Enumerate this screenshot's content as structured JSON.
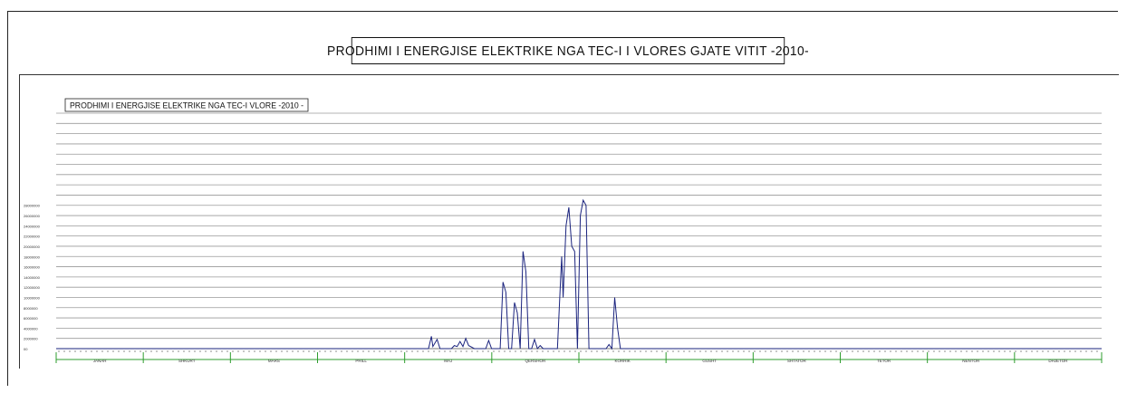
{
  "header": {
    "title": "PRODHIMI  I  ENERGJISE  ELEKTRIKE  NGA  TEC-I  I  VLORES  GJATE  VITIT -2010-"
  },
  "chart_data": {
    "type": "line",
    "title": "PRODHIMI I ENERGJISE ELEKTRIKE NGA TEC-I VLORE -2010 -",
    "xlabel": "",
    "ylabel": "",
    "ylim": [
      0,
      23
    ],
    "grid": true,
    "legend": "none",
    "colors": {
      "line": "#1a237e",
      "month_axis": "#2e9d2e",
      "grid": "#9a9a9a"
    },
    "y_ticks": [
      "00",
      "2000000",
      "4000000",
      "6000000",
      "8000000",
      "10000000",
      "12000000",
      "14000000",
      "16000000",
      "18000000",
      "20000000",
      "22000000",
      "24000000",
      "26000000",
      "28000000"
    ],
    "categories": [
      "JANAR",
      "SHKURT",
      "MARS",
      "PRILL",
      "MAJ",
      "QERSHOR",
      "KORRIK",
      "GUSHT",
      "SHTATOR",
      "TETOR",
      "NENTOR",
      "DHJETOR"
    ],
    "series": [
      {
        "values": [
          [
            0,
            0
          ],
          [
            130,
            0
          ],
          [
            131,
            1.2
          ],
          [
            131.5,
            0.2
          ],
          [
            133,
            0.9
          ],
          [
            134,
            0
          ],
          [
            138,
            0
          ],
          [
            139,
            0.3
          ],
          [
            140,
            0.2
          ],
          [
            141,
            0.7
          ],
          [
            142,
            0.2
          ],
          [
            143,
            1.0
          ],
          [
            144,
            0.3
          ],
          [
            146,
            0
          ],
          [
            150,
            0
          ],
          [
            151,
            0.8
          ],
          [
            152,
            0
          ],
          [
            155,
            0
          ],
          [
            156,
            6.5
          ],
          [
            157,
            5.5
          ],
          [
            158,
            0
          ],
          [
            159,
            0
          ],
          [
            160,
            4.5
          ],
          [
            161,
            3.5
          ],
          [
            162,
            0
          ],
          [
            163,
            9.5
          ],
          [
            164,
            7.5
          ],
          [
            165,
            0
          ],
          [
            166,
            0
          ],
          [
            167,
            0.9
          ],
          [
            168,
            0
          ],
          [
            169,
            0.3
          ],
          [
            170,
            0
          ],
          [
            175,
            0
          ],
          [
            176,
            6.0
          ],
          [
            176.5,
            9.0
          ],
          [
            177,
            5.0
          ],
          [
            178,
            12.0
          ],
          [
            179,
            13.8
          ],
          [
            180,
            10.0
          ],
          [
            181,
            9.5
          ],
          [
            182,
            0
          ],
          [
            183,
            13.0
          ],
          [
            184,
            14.5
          ],
          [
            185,
            14.0
          ],
          [
            186,
            0
          ],
          [
            187,
            0
          ],
          [
            192,
            0
          ],
          [
            193,
            0.4
          ],
          [
            194,
            0
          ],
          [
            195,
            5.0
          ],
          [
            196,
            2.0
          ],
          [
            197,
            0
          ],
          [
            365,
            0
          ]
        ]
      }
    ]
  }
}
